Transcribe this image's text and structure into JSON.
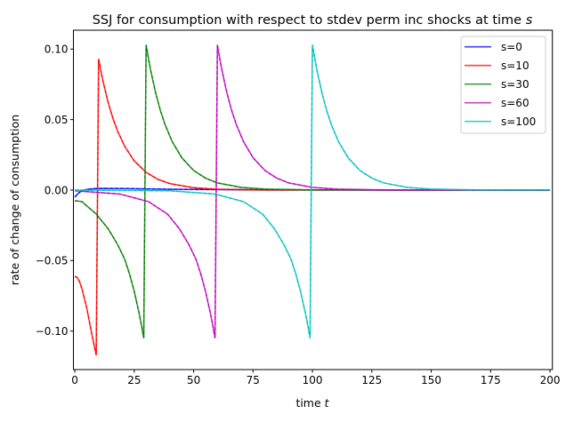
{
  "chart_data": {
    "type": "line",
    "title": "SSJ for consumption with respect to stdev perm inc shocks at time s",
    "title_main": "SSJ for consumption with respect to stdev perm inc shocks at time ",
    "title_var": "s",
    "xlabel_main": "time ",
    "xlabel_var": "t",
    "ylabel": "rate of change of consumption",
    "xlim": [
      -0.6,
      201
    ],
    "ylim": [
      -0.1273,
      0.1134
    ],
    "xticks": [
      0,
      25,
      50,
      75,
      100,
      125,
      150,
      175,
      200
    ],
    "xtick_labels": [
      "0",
      "25",
      "50",
      "75",
      "100",
      "125",
      "150",
      "175",
      "200"
    ],
    "yticks": [
      -0.1,
      -0.05,
      0.0,
      0.05,
      0.1
    ],
    "ytick_labels": [
      "−0.10",
      "−0.05",
      "0.00",
      "0.05",
      "0.10"
    ],
    "grid": false,
    "legend_position": "top-right",
    "series": [
      {
        "name": "s=0",
        "color": "#0000ff",
        "x": [
          0,
          1,
          2,
          3,
          5,
          8,
          12,
          20,
          40,
          80,
          200
        ],
        "y": [
          -0.005,
          -0.003,
          -0.0015,
          -0.0005,
          0.0005,
          0.001,
          0.0012,
          0.0011,
          0.0006,
          0.0001,
          0
        ]
      },
      {
        "name": "s=10",
        "color": "#ff0000",
        "x": [
          0,
          1,
          2,
          3,
          5,
          7,
          8,
          9,
          10,
          11,
          12,
          14,
          16,
          18,
          21,
          25,
          30,
          35,
          40,
          50,
          60,
          80,
          200
        ],
        "y": [
          -0.0612,
          -0.062,
          -0.065,
          -0.07,
          -0.0835,
          -0.101,
          -0.109,
          -0.117,
          0.093,
          0.0842,
          0.0761,
          0.0623,
          0.051,
          0.0418,
          0.031,
          0.0207,
          0.0126,
          0.0076,
          0.0046,
          0.0017,
          0.0006,
          0.0001,
          0
        ]
      },
      {
        "name": "s=30",
        "color": "#008000",
        "x": [
          0,
          3,
          9,
          14,
          18,
          21,
          23,
          25,
          27,
          28,
          29,
          30,
          31,
          32,
          34,
          36,
          38,
          41,
          45,
          50,
          55,
          60,
          70,
          80,
          100,
          200
        ],
        "y": [
          -0.0075,
          -0.0082,
          -0.017,
          -0.0274,
          -0.0386,
          -0.0491,
          -0.0594,
          -0.0718,
          -0.0869,
          -0.0955,
          -0.105,
          0.103,
          0.0932,
          0.0843,
          0.069,
          0.0565,
          0.0463,
          0.0343,
          0.023,
          0.0139,
          0.0085,
          0.0051,
          0.0019,
          0.0007,
          0.0001,
          0
        ]
      },
      {
        "name": "s=60",
        "color": "#bf00bf",
        "x": [
          0,
          19,
          31,
          39,
          44,
          48,
          51,
          53,
          55,
          57,
          58,
          59,
          60,
          61,
          62,
          64,
          66,
          68,
          71,
          75,
          80,
          85,
          90,
          100,
          110,
          130,
          200
        ],
        "y": [
          -0.0005,
          -0.0028,
          -0.0082,
          -0.017,
          -0.0274,
          -0.0386,
          -0.0491,
          -0.0594,
          -0.0718,
          -0.0869,
          -0.0955,
          -0.105,
          0.103,
          0.0932,
          0.0843,
          0.069,
          0.0565,
          0.0463,
          0.0343,
          0.023,
          0.0139,
          0.0085,
          0.0051,
          0.0019,
          0.0007,
          0.0001,
          0
        ]
      },
      {
        "name": "s=100",
        "color": "#00bfbf",
        "x": [
          0,
          40,
          59,
          71,
          79,
          84,
          88,
          91,
          93,
          95,
          97,
          98,
          99,
          100,
          101,
          102,
          104,
          106,
          108,
          111,
          115,
          120,
          125,
          130,
          140,
          150,
          170,
          200
        ],
        "y": [
          0,
          -0.0005,
          -0.0028,
          -0.0082,
          -0.017,
          -0.0274,
          -0.0386,
          -0.0491,
          -0.0594,
          -0.0718,
          -0.0869,
          -0.0955,
          -0.105,
          0.103,
          0.0932,
          0.0843,
          0.069,
          0.0565,
          0.0463,
          0.0343,
          0.023,
          0.0139,
          0.0085,
          0.0051,
          0.0019,
          0.0007,
          0.0001,
          0
        ]
      }
    ]
  }
}
